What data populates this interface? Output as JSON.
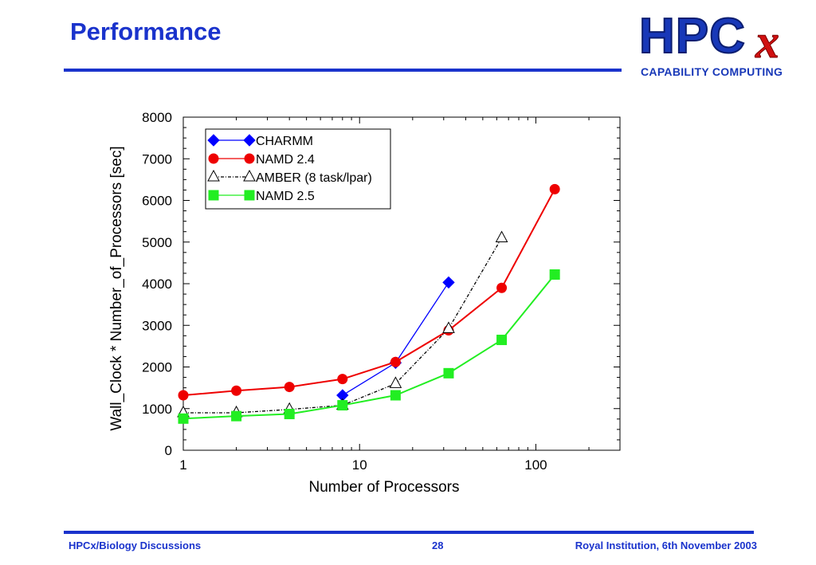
{
  "slide": {
    "title": "Performance",
    "logo": {
      "main": "HPC",
      "x": "x",
      "sub": "CAPABILITY COMPUTING"
    },
    "footer": {
      "left": "HPCx/Biology Discussions",
      "page": "28",
      "right": "Royal Institution, 6th November 2003"
    }
  },
  "colors": {
    "accent": "#1a33cc",
    "charmm": "#0000ff",
    "namd24": "#ee0000",
    "amber": "#000000",
    "namd25": "#22ee22"
  },
  "chart_data": {
    "type": "line",
    "xlabel": "Number of Processors",
    "ylabel": "Wall_Clock * Number_of_Processors [sec]",
    "xscale": "log",
    "xlim": [
      1,
      300
    ],
    "ylim": [
      0,
      8000
    ],
    "x_ticks": [
      1,
      10,
      100
    ],
    "x_tick_labels": [
      "1",
      "10",
      "100"
    ],
    "y_ticks": [
      0,
      1000,
      2000,
      3000,
      4000,
      5000,
      6000,
      7000,
      8000
    ],
    "y_tick_labels": [
      "0",
      "1000",
      "2000",
      "3000",
      "4000",
      "5000",
      "6000",
      "7000",
      "8000"
    ],
    "grid": false,
    "legend_position": "top-left",
    "series": [
      {
        "name": "CHARMM",
        "marker": "diamond",
        "color": "#0000ff",
        "x": [
          8,
          16,
          32
        ],
        "y": [
          1320,
          2100,
          4030
        ]
      },
      {
        "name": "NAMD 2.4",
        "marker": "circle",
        "color": "#ee0000",
        "x": [
          1,
          2,
          4,
          8,
          16,
          32,
          64,
          128
        ],
        "y": [
          1320,
          1430,
          1520,
          1710,
          2120,
          2880,
          3900,
          6270
        ]
      },
      {
        "name": "AMBER (8 task/lpar)",
        "marker": "triangle",
        "color": "#000000",
        "x": [
          1,
          2,
          4,
          8,
          16,
          32,
          64
        ],
        "y": [
          900,
          900,
          980,
          1080,
          1600,
          2920,
          5100
        ]
      },
      {
        "name": "NAMD 2.5",
        "marker": "square",
        "color": "#22ee22",
        "x": [
          1,
          2,
          4,
          8,
          16,
          32,
          64,
          128
        ],
        "y": [
          760,
          820,
          870,
          1080,
          1320,
          1850,
          2650,
          4220
        ]
      }
    ]
  }
}
